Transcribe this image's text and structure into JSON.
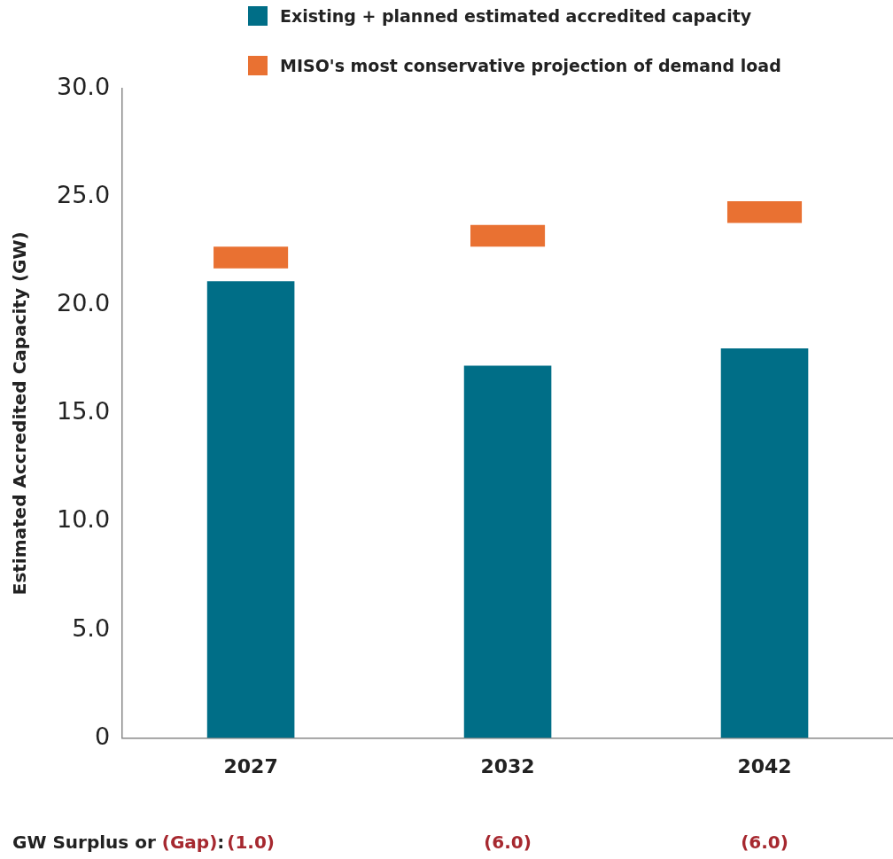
{
  "chart_data": {
    "type": "bar",
    "ylabel": "Estimated Accredited Capacity (GW)",
    "categories": [
      "2027",
      "2032",
      "2042"
    ],
    "series": [
      {
        "name": "Existing + planned estimated accredited capacity",
        "color": "#006e87",
        "values": [
          21.1,
          17.2,
          18.0
        ]
      },
      {
        "name": "MISO's most conservative projection of demand load",
        "color": "#e97132",
        "values": [
          1.0,
          1.0,
          1.0
        ],
        "base": [
          21.7,
          22.7,
          23.8
        ]
      }
    ],
    "ylim": [
      0,
      30
    ],
    "yticks": [
      0,
      {
        "value": 5,
        "label": "5.0"
      },
      {
        "value": 10,
        "label": "10.0"
      },
      {
        "value": 15,
        "label": "15.0"
      },
      {
        "value": 20,
        "label": "20.0"
      },
      {
        "value": 25,
        "label": "25.0"
      },
      {
        "value": 30,
        "label": "30.0"
      }
    ],
    "grid": false,
    "legend": "top",
    "annotations": [
      "GW Surplus or (Gap):",
      "(1.0)",
      "(6.0)",
      "(6.0)"
    ]
  }
}
